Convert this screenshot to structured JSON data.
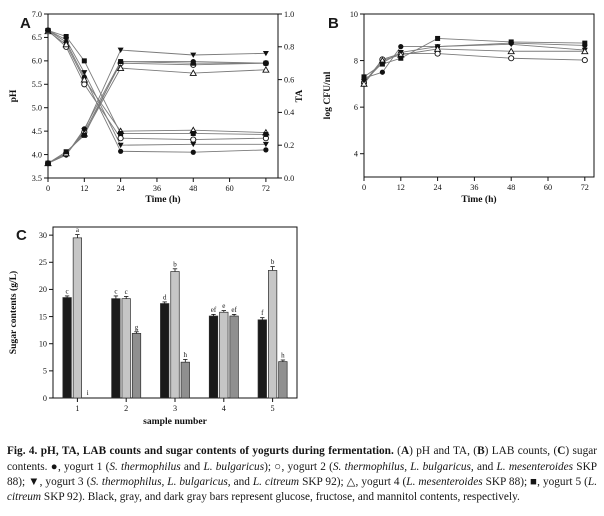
{
  "figure": {
    "id_label": "Fig. 4",
    "title": "pH, TA, LAB counts and sugar contents of yogurts during fermentation."
  },
  "chart_data": [
    {
      "type": "line",
      "panel_label": "A",
      "xlabel": "Time (h)",
      "ylabel_left": "pH",
      "ylabel_right": "TA",
      "xlim": [
        0,
        76
      ],
      "ylim_left": [
        3.5,
        7.0
      ],
      "ylim_right": [
        0.0,
        1.0
      ],
      "x_ticks": [
        0,
        12,
        24,
        36,
        48,
        60,
        72
      ],
      "y_ticks_left": [
        "3.5",
        "4.0",
        "4.5",
        "5.0",
        "5.5",
        "6.0",
        "6.5",
        "7.0"
      ],
      "y_ticks_right": [
        "0.0",
        "0.2",
        "0.4",
        "0.6",
        "0.8",
        "1.0"
      ],
      "x": [
        0,
        6,
        12,
        24,
        48,
        72
      ],
      "series": [
        {
          "name": "yogurt 1 pH",
          "marker": "circle-filled",
          "axis": "left",
          "values": [
            6.65,
            6.4,
            5.65,
            4.07,
            4.05,
            4.1
          ]
        },
        {
          "name": "yogurt 2 pH",
          "marker": "circle-open",
          "axis": "left",
          "values": [
            6.65,
            6.3,
            5.5,
            4.35,
            4.32,
            4.35
          ]
        },
        {
          "name": "yogurt 3 pH",
          "marker": "triangle-down-filled",
          "axis": "left",
          "values": [
            6.65,
            6.45,
            5.75,
            4.2,
            4.22,
            4.22
          ]
        },
        {
          "name": "yogurt 4 pH",
          "marker": "triangle-up-open",
          "axis": "left",
          "values": [
            6.63,
            6.35,
            5.6,
            4.5,
            4.52,
            4.47
          ]
        },
        {
          "name": "yogurt 5 pH",
          "marker": "square-filled",
          "axis": "left",
          "values": [
            6.65,
            6.52,
            6.0,
            4.45,
            4.45,
            4.43
          ]
        },
        {
          "name": "yogurt 1 TA",
          "marker": "circle-filled",
          "axis": "right",
          "values": [
            0.09,
            0.14,
            0.3,
            0.71,
            0.71,
            0.7
          ]
        },
        {
          "name": "yogurt 2 TA",
          "marker": "circle-open",
          "axis": "right",
          "values": [
            0.09,
            0.15,
            0.28,
            0.7,
            0.69,
            0.7
          ]
        },
        {
          "name": "yogurt 3 TA",
          "marker": "triangle-down-filled",
          "axis": "right",
          "values": [
            0.09,
            0.14,
            0.29,
            0.78,
            0.75,
            0.76
          ]
        },
        {
          "name": "yogurt 4 TA",
          "marker": "triangle-up-open",
          "axis": "right",
          "values": [
            0.09,
            0.15,
            0.27,
            0.67,
            0.64,
            0.66
          ]
        },
        {
          "name": "yogurt 5 TA",
          "marker": "square-filled",
          "axis": "right",
          "values": [
            0.09,
            0.16,
            0.26,
            0.71,
            0.7,
            0.7
          ]
        }
      ]
    },
    {
      "type": "line",
      "panel_label": "B",
      "xlabel": "Time (h)",
      "ylabel_left": "log CFU/ml",
      "xlim": [
        0,
        75
      ],
      "ylim_left": [
        3.0,
        10.0
      ],
      "x_ticks": [
        0,
        12,
        24,
        36,
        48,
        60,
        72
      ],
      "y_ticks_left": [
        "4",
        "6",
        "8",
        "10"
      ],
      "x": [
        0,
        6,
        12,
        24,
        48,
        72
      ],
      "series": [
        {
          "name": "yogurt 1",
          "marker": "circle-filled",
          "axis": "left",
          "values": [
            7.25,
            7.5,
            8.6,
            8.6,
            8.75,
            8.65
          ]
        },
        {
          "name": "yogurt 2",
          "marker": "circle-open",
          "axis": "left",
          "values": [
            7.05,
            8.05,
            8.3,
            8.3,
            8.1,
            8.02
          ]
        },
        {
          "name": "yogurt 3",
          "marker": "triangle-down-filled",
          "axis": "left",
          "values": [
            7.1,
            7.9,
            8.35,
            8.6,
            8.7,
            8.45
          ]
        },
        {
          "name": "yogurt 4",
          "marker": "triangle-up-open",
          "axis": "left",
          "values": [
            7.0,
            8.0,
            8.25,
            8.5,
            8.4,
            8.4
          ]
        },
        {
          "name": "yogurt 5",
          "marker": "square-filled",
          "axis": "left",
          "values": [
            7.3,
            7.85,
            8.1,
            8.95,
            8.8,
            8.75
          ]
        }
      ]
    },
    {
      "type": "bar",
      "panel_label": "C",
      "xlabel": "sample number",
      "ylabel": "Sugar contents (g/L)",
      "ylim": [
        0,
        31.5
      ],
      "y_ticks": [
        "0",
        "5",
        "10",
        "15",
        "20",
        "25",
        "30"
      ],
      "categories": [
        "1",
        "2",
        "3",
        "4",
        "5"
      ],
      "series": [
        {
          "name": "glucose",
          "color": "#1a1a1a",
          "values": [
            18.5,
            18.3,
            17.4,
            15.1,
            14.4
          ],
          "sig_labels": [
            "c",
            "c",
            "d",
            "ef",
            "f"
          ],
          "errors": [
            0.3,
            0.5,
            0.3,
            0.3,
            0.4
          ]
        },
        {
          "name": "fructose",
          "color": "#c6c6c6",
          "values": [
            29.5,
            18.3,
            23.3,
            15.8,
            23.5
          ],
          "sig_labels": [
            "a",
            "c",
            "b",
            "e",
            "b"
          ],
          "errors": [
            0.6,
            0.4,
            0.5,
            0.3,
            0.7
          ]
        },
        {
          "name": "mannitol",
          "color": "#8f8f8f",
          "values": [
            0,
            11.9,
            6.6,
            15.1,
            6.7
          ],
          "sig_labels": [
            "i",
            "g",
            "h",
            "ef",
            "h"
          ],
          "errors": [
            0,
            0.3,
            0.5,
            0.3,
            0.3
          ]
        }
      ]
    }
  ],
  "caption": {
    "segments": [
      {
        "text": "Fig. 4. pH, TA, LAB counts and sugar contents of yogurts during fermentation.",
        "style": "bold"
      },
      {
        "text": " (",
        "style": "normal"
      },
      {
        "text": "A",
        "style": "bold"
      },
      {
        "text": ") pH and TA, (",
        "style": "normal"
      },
      {
        "text": "B",
        "style": "bold"
      },
      {
        "text": ") LAB counts, (",
        "style": "normal"
      },
      {
        "text": "C",
        "style": "bold"
      },
      {
        "text": ") sugar contents. ",
        "style": "normal"
      },
      {
        "text": "●",
        "style": "normal",
        "marker": "filled-circle-marker"
      },
      {
        "text": ", yogurt 1 (",
        "style": "normal"
      },
      {
        "text": "S. thermophilus",
        "style": "italic"
      },
      {
        "text": " and ",
        "style": "normal"
      },
      {
        "text": "L. bulgaricus",
        "style": "italic"
      },
      {
        "text": "); ",
        "style": "normal"
      },
      {
        "text": "○",
        "style": "normal",
        "marker": "open-circle-marker"
      },
      {
        "text": ", yogurt 2 (",
        "style": "normal"
      },
      {
        "text": "S. thermophilus, L. bulgaricus,",
        "style": "italic"
      },
      {
        "text": " and ",
        "style": "normal"
      },
      {
        "text": "L. mesenteroides",
        "style": "italic"
      },
      {
        "text": " SKP 88); ",
        "style": "normal"
      },
      {
        "text": "▼",
        "style": "normal",
        "marker": "filled-triangle-marker"
      },
      {
        "text": ", yogurt 3 (",
        "style": "normal"
      },
      {
        "text": "S. thermophilus, L. bulgaricus,",
        "style": "italic"
      },
      {
        "text": " and ",
        "style": "normal"
      },
      {
        "text": "L. citreum",
        "style": "italic"
      },
      {
        "text": " SKP 92); ",
        "style": "normal"
      },
      {
        "text": "△",
        "style": "normal",
        "marker": "open-triangle-marker"
      },
      {
        "text": ", yogurt 4 (",
        "style": "normal"
      },
      {
        "text": "L. mesenteroides",
        "style": "italic"
      },
      {
        "text": " SKP 88); ",
        "style": "normal"
      },
      {
        "text": "■",
        "style": "normal",
        "marker": "filled-square-marker"
      },
      {
        "text": ", yogurt 5 (",
        "style": "normal"
      },
      {
        "text": "L. citreum",
        "style": "italic"
      },
      {
        "text": " SKP 92). Black, gray, and dark gray bars represent glucose, fructose, and mannitol contents, respectively.",
        "style": "normal"
      }
    ]
  }
}
